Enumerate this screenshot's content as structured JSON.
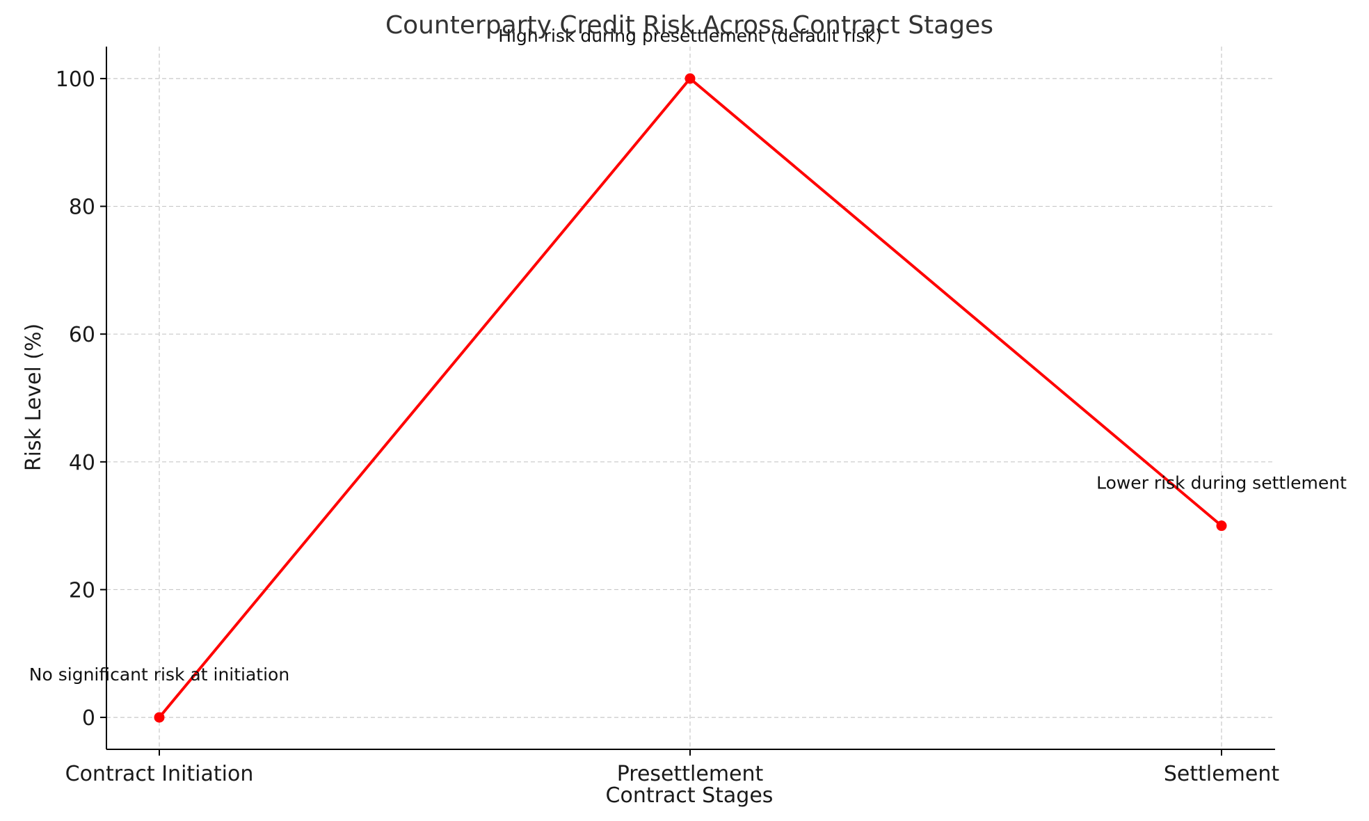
{
  "chart_data": {
    "type": "line",
    "title": "Counterparty Credit Risk Across Contract Stages",
    "xlabel": "Contract Stages",
    "ylabel": "Risk Level (%)",
    "categories": [
      "Contract Initiation",
      "Presettlement",
      "Settlement"
    ],
    "series": [
      {
        "values": [
          0,
          100,
          30
        ],
        "color": "#ff0000"
      }
    ],
    "ylim": [
      -5,
      105
    ],
    "yticks": [
      0,
      20,
      40,
      60,
      80,
      100
    ],
    "grid": true,
    "annotations": [
      {
        "category_index": 0,
        "value": 0,
        "text": "No significant risk at initiation"
      },
      {
        "category_index": 1,
        "value": 100,
        "text": "High risk during presettlement (default risk)"
      },
      {
        "category_index": 2,
        "value": 30,
        "text": "Lower risk during settlement"
      }
    ]
  }
}
